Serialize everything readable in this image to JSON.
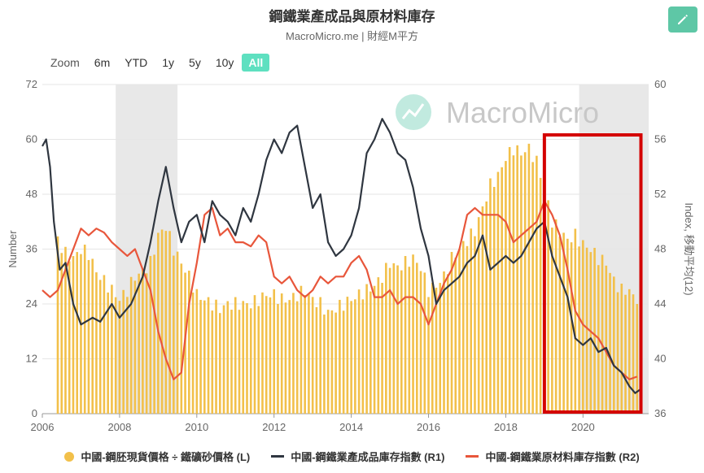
{
  "header": {
    "title": "鋼鐵業產成品與原材料庫存",
    "subtitle": "MacroMicro.me | 財經M平方",
    "watermark": "MacroMicro"
  },
  "zoom": {
    "label": "Zoom",
    "options": [
      "6m",
      "YTD",
      "1y",
      "5y",
      "10y",
      "All"
    ],
    "active": "All"
  },
  "colors": {
    "bars": "#f2c04a",
    "r1": "#2f3640",
    "r2": "#e8563b",
    "highlight_box": "#d40000",
    "recession": "#e8e8e8",
    "accent": "#5ec7a6"
  },
  "chart_data": {
    "type": "bar+line",
    "y_left": {
      "label": "Number",
      "range": [
        0,
        72
      ],
      "ticks": [
        0,
        12,
        24,
        36,
        48,
        60,
        72
      ]
    },
    "y_right": {
      "label": "Index, 移動平均(12)",
      "range": [
        36,
        60
      ],
      "ticks": [
        36,
        40,
        44,
        48,
        52,
        56,
        60
      ]
    },
    "x_axis": {
      "range": [
        2006,
        2021.7
      ],
      "ticks": [
        "2006",
        "2008",
        "2010",
        "2012",
        "2014",
        "2016",
        "2018",
        "2020"
      ]
    },
    "shaded_periods": [
      [
        2007.9,
        2009.5
      ],
      [
        2019.9,
        2021.7
      ]
    ],
    "highlight_period": [
      2019.0,
      2021.5
    ],
    "series": [
      {
        "name": "中國-鋼胚現貨價格 ÷ 鐵礦砂價格 (L)",
        "type": "bar",
        "axis": "left",
        "points": [
          [
            2006.4,
            38
          ],
          [
            2006.6,
            35
          ],
          [
            2006.8,
            34
          ],
          [
            2007.0,
            36
          ],
          [
            2007.2,
            35
          ],
          [
            2007.4,
            31
          ],
          [
            2007.6,
            29
          ],
          [
            2007.8,
            27
          ],
          [
            2008.0,
            25
          ],
          [
            2008.2,
            27
          ],
          [
            2008.4,
            30
          ],
          [
            2008.6,
            31
          ],
          [
            2008.8,
            33
          ],
          [
            2009.0,
            39
          ],
          [
            2009.2,
            41
          ],
          [
            2009.4,
            36
          ],
          [
            2009.6,
            33
          ],
          [
            2009.8,
            30
          ],
          [
            2010.0,
            26
          ],
          [
            2010.2,
            25
          ],
          [
            2010.4,
            24
          ],
          [
            2010.6,
            23
          ],
          [
            2010.8,
            24
          ],
          [
            2011.0,
            24
          ],
          [
            2011.2,
            24
          ],
          [
            2011.4,
            24
          ],
          [
            2011.6,
            25
          ],
          [
            2011.8,
            26
          ],
          [
            2012.0,
            26
          ],
          [
            2012.2,
            25
          ],
          [
            2012.4,
            25
          ],
          [
            2012.6,
            26
          ],
          [
            2012.8,
            27
          ],
          [
            2013.0,
            25
          ],
          [
            2013.2,
            24
          ],
          [
            2013.4,
            22
          ],
          [
            2013.6,
            23
          ],
          [
            2013.8,
            24
          ],
          [
            2014.0,
            25
          ],
          [
            2014.2,
            26
          ],
          [
            2014.4,
            27
          ],
          [
            2014.6,
            28
          ],
          [
            2014.8,
            30
          ],
          [
            2015.0,
            33
          ],
          [
            2015.2,
            32
          ],
          [
            2015.4,
            33
          ],
          [
            2015.6,
            34
          ],
          [
            2015.8,
            32
          ],
          [
            2016.0,
            27
          ],
          [
            2016.2,
            28
          ],
          [
            2016.4,
            30
          ],
          [
            2016.6,
            34
          ],
          [
            2016.8,
            36
          ],
          [
            2017.0,
            38
          ],
          [
            2017.2,
            40
          ],
          [
            2017.4,
            45
          ],
          [
            2017.6,
            50
          ],
          [
            2017.8,
            52
          ],
          [
            2018.0,
            56
          ],
          [
            2018.2,
            58
          ],
          [
            2018.4,
            57
          ],
          [
            2018.6,
            58
          ],
          [
            2018.8,
            55
          ],
          [
            2019.0,
            50
          ],
          [
            2019.2,
            42
          ],
          [
            2019.4,
            40
          ],
          [
            2019.6,
            38
          ],
          [
            2019.8,
            39
          ],
          [
            2020.0,
            37
          ],
          [
            2020.2,
            36
          ],
          [
            2020.4,
            34
          ],
          [
            2020.6,
            33
          ],
          [
            2020.8,
            29
          ],
          [
            2021.0,
            27
          ],
          [
            2021.2,
            27
          ],
          [
            2021.4,
            24
          ]
        ]
      },
      {
        "name": "中國-鋼鐵業產成品庫存指數 (R1)",
        "type": "line",
        "axis": "right",
        "points": [
          [
            2006.0,
            55.5
          ],
          [
            2006.1,
            56
          ],
          [
            2006.2,
            54
          ],
          [
            2006.3,
            50
          ],
          [
            2006.45,
            46.5
          ],
          [
            2006.6,
            47
          ],
          [
            2006.8,
            44
          ],
          [
            2007.0,
            42.5
          ],
          [
            2007.3,
            43
          ],
          [
            2007.5,
            42.7
          ],
          [
            2007.8,
            44
          ],
          [
            2008.0,
            43
          ],
          [
            2008.3,
            44
          ],
          [
            2008.6,
            46
          ],
          [
            2008.8,
            48.5
          ],
          [
            2009.0,
            51.5
          ],
          [
            2009.2,
            54
          ],
          [
            2009.4,
            51
          ],
          [
            2009.6,
            48.5
          ],
          [
            2009.8,
            50
          ],
          [
            2010.0,
            50.5
          ],
          [
            2010.2,
            48.5
          ],
          [
            2010.4,
            51.5
          ],
          [
            2010.6,
            50.5
          ],
          [
            2010.8,
            50
          ],
          [
            2011.0,
            49
          ],
          [
            2011.2,
            51
          ],
          [
            2011.4,
            50
          ],
          [
            2011.6,
            52
          ],
          [
            2011.8,
            54.5
          ],
          [
            2012.0,
            56
          ],
          [
            2012.2,
            55
          ],
          [
            2012.4,
            56.5
          ],
          [
            2012.6,
            57
          ],
          [
            2012.8,
            54
          ],
          [
            2013.0,
            51
          ],
          [
            2013.2,
            52
          ],
          [
            2013.4,
            48.5
          ],
          [
            2013.6,
            47.5
          ],
          [
            2013.8,
            48
          ],
          [
            2014.0,
            49
          ],
          [
            2014.2,
            51
          ],
          [
            2014.4,
            55
          ],
          [
            2014.6,
            56
          ],
          [
            2014.8,
            57.5
          ],
          [
            2015.0,
            56.5
          ],
          [
            2015.2,
            55
          ],
          [
            2015.4,
            54.5
          ],
          [
            2015.6,
            52.5
          ],
          [
            2015.8,
            49.5
          ],
          [
            2016.0,
            47.5
          ],
          [
            2016.2,
            44
          ],
          [
            2016.4,
            45
          ],
          [
            2016.6,
            45.5
          ],
          [
            2016.8,
            46
          ],
          [
            2017.0,
            47
          ],
          [
            2017.2,
            47.5
          ],
          [
            2017.4,
            49
          ],
          [
            2017.6,
            46.5
          ],
          [
            2017.8,
            47
          ],
          [
            2018.0,
            47.5
          ],
          [
            2018.2,
            47
          ],
          [
            2018.4,
            47.5
          ],
          [
            2018.6,
            48.5
          ],
          [
            2018.8,
            49.5
          ],
          [
            2019.0,
            50
          ],
          [
            2019.2,
            47.5
          ],
          [
            2019.4,
            46
          ],
          [
            2019.6,
            44.5
          ],
          [
            2019.8,
            41.5
          ],
          [
            2020.0,
            41
          ],
          [
            2020.2,
            41.5
          ],
          [
            2020.4,
            40.5
          ],
          [
            2020.6,
            40.8
          ],
          [
            2020.8,
            39.5
          ],
          [
            2021.0,
            39
          ],
          [
            2021.2,
            38
          ],
          [
            2021.35,
            37.5
          ],
          [
            2021.5,
            37.8
          ]
        ]
      },
      {
        "name": "中國-鋼鐵業原材料庫存指數 (R2)",
        "type": "line",
        "axis": "right",
        "points": [
          [
            2006.0,
            45
          ],
          [
            2006.2,
            44.5
          ],
          [
            2006.4,
            45
          ],
          [
            2006.6,
            46.5
          ],
          [
            2006.8,
            48
          ],
          [
            2007.0,
            49.5
          ],
          [
            2007.2,
            49
          ],
          [
            2007.4,
            49.5
          ],
          [
            2007.6,
            49.2
          ],
          [
            2007.8,
            48.5
          ],
          [
            2008.0,
            48
          ],
          [
            2008.2,
            47.5
          ],
          [
            2008.4,
            48
          ],
          [
            2008.6,
            46.5
          ],
          [
            2008.8,
            45
          ],
          [
            2009.0,
            42
          ],
          [
            2009.2,
            40
          ],
          [
            2009.4,
            38.5
          ],
          [
            2009.6,
            39
          ],
          [
            2009.8,
            44
          ],
          [
            2010.0,
            47
          ],
          [
            2010.2,
            50.5
          ],
          [
            2010.4,
            51
          ],
          [
            2010.6,
            49
          ],
          [
            2010.8,
            49.5
          ],
          [
            2011.0,
            48.5
          ],
          [
            2011.2,
            48.5
          ],
          [
            2011.4,
            48.2
          ],
          [
            2011.6,
            49
          ],
          [
            2011.8,
            48.5
          ],
          [
            2012.0,
            46
          ],
          [
            2012.2,
            45.5
          ],
          [
            2012.4,
            46
          ],
          [
            2012.6,
            45
          ],
          [
            2012.8,
            44.5
          ],
          [
            2013.0,
            45
          ],
          [
            2013.2,
            46
          ],
          [
            2013.4,
            45.5
          ],
          [
            2013.6,
            46
          ],
          [
            2013.8,
            46
          ],
          [
            2014.0,
            47
          ],
          [
            2014.2,
            47.5
          ],
          [
            2014.4,
            46.5
          ],
          [
            2014.6,
            44.5
          ],
          [
            2014.8,
            44.5
          ],
          [
            2015.0,
            45
          ],
          [
            2015.2,
            44
          ],
          [
            2015.4,
            44.5
          ],
          [
            2015.6,
            44.5
          ],
          [
            2015.8,
            44
          ],
          [
            2016.0,
            42.5
          ],
          [
            2016.2,
            44
          ],
          [
            2016.4,
            45.5
          ],
          [
            2016.6,
            46.5
          ],
          [
            2016.8,
            48
          ],
          [
            2017.0,
            50.5
          ],
          [
            2017.2,
            51
          ],
          [
            2017.4,
            50.5
          ],
          [
            2017.6,
            50.5
          ],
          [
            2017.8,
            50.5
          ],
          [
            2018.0,
            50
          ],
          [
            2018.2,
            48.5
          ],
          [
            2018.4,
            49
          ],
          [
            2018.6,
            49.5
          ],
          [
            2018.8,
            50
          ],
          [
            2019.0,
            51.5
          ],
          [
            2019.2,
            50.5
          ],
          [
            2019.4,
            49
          ],
          [
            2019.6,
            46.5
          ],
          [
            2019.8,
            43.5
          ],
          [
            2020.0,
            42.5
          ],
          [
            2020.2,
            42
          ],
          [
            2020.4,
            41.5
          ],
          [
            2020.6,
            40.5
          ],
          [
            2020.8,
            39.5
          ],
          [
            2021.0,
            39
          ],
          [
            2021.2,
            38.5
          ],
          [
            2021.4,
            38.7
          ]
        ]
      }
    ],
    "legend": {
      "placement": "bottom"
    }
  }
}
